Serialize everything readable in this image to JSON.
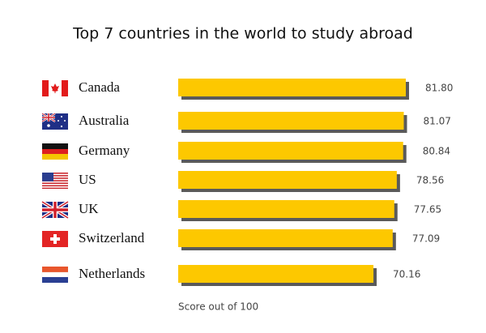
{
  "chart_data": {
    "type": "bar",
    "orientation": "horizontal",
    "title": "Top 7 countries in the world to study abroad",
    "categories": [
      "Canada",
      "Australia",
      "Germany",
      "US",
      "UK",
      "Switzerland",
      "Netherlands"
    ],
    "values": [
      81.8,
      81.07,
      80.84,
      78.56,
      77.65,
      77.09,
      70.16
    ],
    "value_labels": [
      "81.80",
      "81.07",
      "80.84",
      "78.56",
      "77.65",
      "77.09",
      "70.16"
    ],
    "color": "#fdc800",
    "x_label": "Score out of 100"
  }
}
